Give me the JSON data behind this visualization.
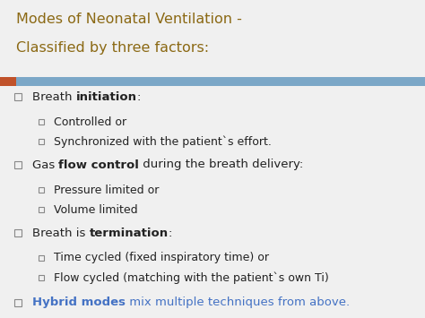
{
  "title_line1": "Modes of Neonatal Ventilation -",
  "title_line2": "Classified by three factors:",
  "title_color": "#8B6914",
  "bg_color": "#f0f0f0",
  "divider_color": "#7BA7C7",
  "divider_orange": "#C0522A",
  "items": [
    {
      "level": 1,
      "parts": [
        {
          "text": "Breath ",
          "bold": false,
          "color": "#222222"
        },
        {
          "text": "initiation",
          "bold": true,
          "color": "#222222"
        },
        {
          "text": ":",
          "bold": false,
          "color": "#222222"
        }
      ]
    },
    {
      "level": 2,
      "parts": [
        {
          "text": "Controlled or",
          "bold": false,
          "color": "#222222"
        }
      ]
    },
    {
      "level": 2,
      "parts": [
        {
          "text": "Synchronized with the patient`s effort.",
          "bold": false,
          "color": "#222222"
        }
      ]
    },
    {
      "level": 1,
      "parts": [
        {
          "text": "Gas ",
          "bold": false,
          "color": "#222222"
        },
        {
          "text": "flow control",
          "bold": true,
          "color": "#222222"
        },
        {
          "text": " during the breath delivery:",
          "bold": false,
          "color": "#222222"
        }
      ]
    },
    {
      "level": 2,
      "parts": [
        {
          "text": "Pressure limited or",
          "bold": false,
          "color": "#222222"
        }
      ]
    },
    {
      "level": 2,
      "parts": [
        {
          "text": "Volume limited",
          "bold": false,
          "color": "#222222"
        }
      ]
    },
    {
      "level": 1,
      "parts": [
        {
          "text": "Breath is ",
          "bold": false,
          "color": "#222222"
        },
        {
          "text": "termination",
          "bold": true,
          "color": "#222222"
        },
        {
          "text": ":",
          "bold": false,
          "color": "#222222"
        }
      ]
    },
    {
      "level": 2,
      "parts": [
        {
          "text": "Time cycled (fixed inspiratory time) or",
          "bold": false,
          "color": "#222222"
        }
      ]
    },
    {
      "level": 2,
      "parts": [
        {
          "text": "Flow cycled (matching with the patient`s own Ti)",
          "bold": false,
          "color": "#222222"
        }
      ]
    },
    {
      "level": 1,
      "parts": [
        {
          "text": "Hybrid modes",
          "bold": true,
          "color": "#4472C4"
        },
        {
          "text": " mix multiple techniques from above.",
          "bold": false,
          "color": "#4472C4"
        }
      ]
    }
  ],
  "fig_width": 4.74,
  "fig_height": 3.55,
  "dpi": 100
}
